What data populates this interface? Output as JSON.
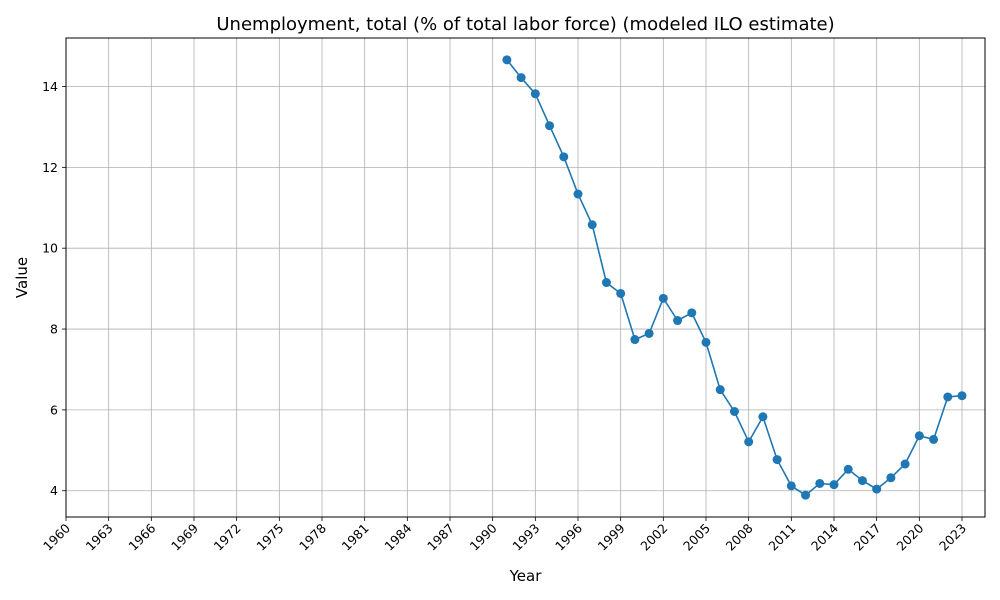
{
  "chart_data": {
    "type": "line",
    "title": "Unemployment, total (% of total labor force) (modeled ILO estimate)",
    "xlabel": "Year",
    "ylabel": "Value",
    "xlim": [
      1960,
      2023
    ],
    "ylim": [
      3.35,
      15.2
    ],
    "x_ticks": [
      1960,
      1963,
      1966,
      1969,
      1972,
      1975,
      1978,
      1981,
      1984,
      1987,
      1990,
      1993,
      1996,
      1999,
      2002,
      2005,
      2008,
      2011,
      2014,
      2017,
      2020,
      2023
    ],
    "y_ticks": [
      4,
      6,
      8,
      10,
      12,
      14
    ],
    "grid": true,
    "series": [
      {
        "color": "#1f77b4",
        "marker": "circle",
        "x": [
          1991,
          1992,
          1993,
          1994,
          1995,
          1996,
          1997,
          1998,
          1999,
          2000,
          2001,
          2002,
          2003,
          2004,
          2005,
          2006,
          2007,
          2008,
          2009,
          2010,
          2011,
          2012,
          2013,
          2014,
          2015,
          2016,
          2017,
          2018,
          2019,
          2020,
          2021,
          2022,
          2023
        ],
        "y": [
          14.66,
          14.22,
          13.82,
          13.03,
          12.26,
          11.34,
          10.58,
          9.15,
          8.88,
          7.74,
          7.89,
          8.76,
          8.21,
          8.4,
          7.67,
          6.5,
          5.96,
          5.21,
          5.83,
          4.77,
          4.12,
          3.89,
          4.18,
          4.15,
          4.53,
          4.25,
          4.04,
          4.32,
          4.66,
          5.36,
          5.27,
          6.32,
          6.35
        ]
      }
    ]
  }
}
